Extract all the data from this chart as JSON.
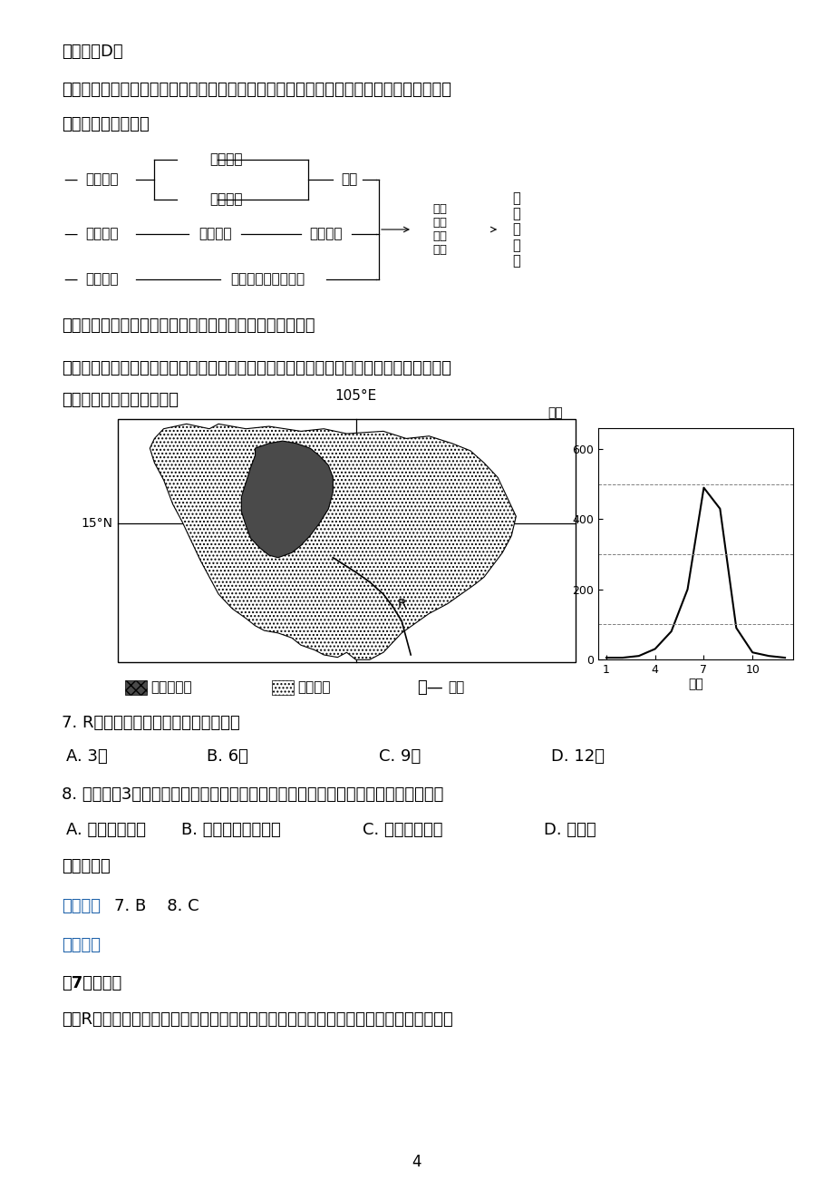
{
  "bg_color": "#ffffff",
  "line1": "误，故选D。",
  "line2": "【点睛】水资源的特点及影响因素的分析主要看降水、蒸发的对比及流域面积的大小状况，",
  "line3": "分析水资源的丰歉：",
  "conclusion": "结论：多年平均径流量是衡量水资源丰歉程度的主要指标。",
  "intro_text1": "下图为中南半岛最大湖泊及河流分布图，图为该地区多年平均降水量分配图。该地区水稻单",
  "intro_text2": "产低。读图回答下面小题。",
  "map_label_lon": "105°E",
  "map_label_lat": "15°N",
  "map_label_r": "R",
  "chart_ylabel": "毫米",
  "chart_xlabel": "月份",
  "chart_yticks": [
    0,
    200,
    400,
    600
  ],
  "chart_xticks": [
    1,
    4,
    7,
    10
  ],
  "chart_months": [
    1,
    2,
    3,
    4,
    5,
    6,
    7,
    8,
    9,
    10,
    11,
    12
  ],
  "chart_values": [
    5,
    5,
    10,
    30,
    80,
    200,
    490,
    430,
    90,
    20,
    10,
    5
  ],
  "chart_dashed": [
    100,
    300,
    500
  ],
  "legend1": "枯水期水域",
  "legend2": "汛期水域",
  "legend3": "河流",
  "q7": "7. R河水开始转向西北流的时间可能是",
  "q7a": "A. 3月",
  "q7b": "B. 6月",
  "q7c": "C. 9月",
  "q7d": "D. 12月",
  "q8": "8. 某旅游者3月到该湖旅游，发现附近的农民正在收获水稻，该农事安排的合理解释是",
  "q8a": "A. 避开高温季节",
  "q8b": "B. 随时播种随时收获",
  "q8c": "C. 避免洪灾影响",
  "q8d": "D. 错季生",
  "q8_cont": "产便于出口",
  "answer_label": "【答案】",
  "answer_text": "7. B    8. C",
  "analysis_label": "【解析】",
  "detail_label": "【7题详解】",
  "detail_text": "图中R河向西北流时为河水补给湖泊水。由该地区多年平均降水量季节变化图可看出，每年",
  "page_num": "4"
}
